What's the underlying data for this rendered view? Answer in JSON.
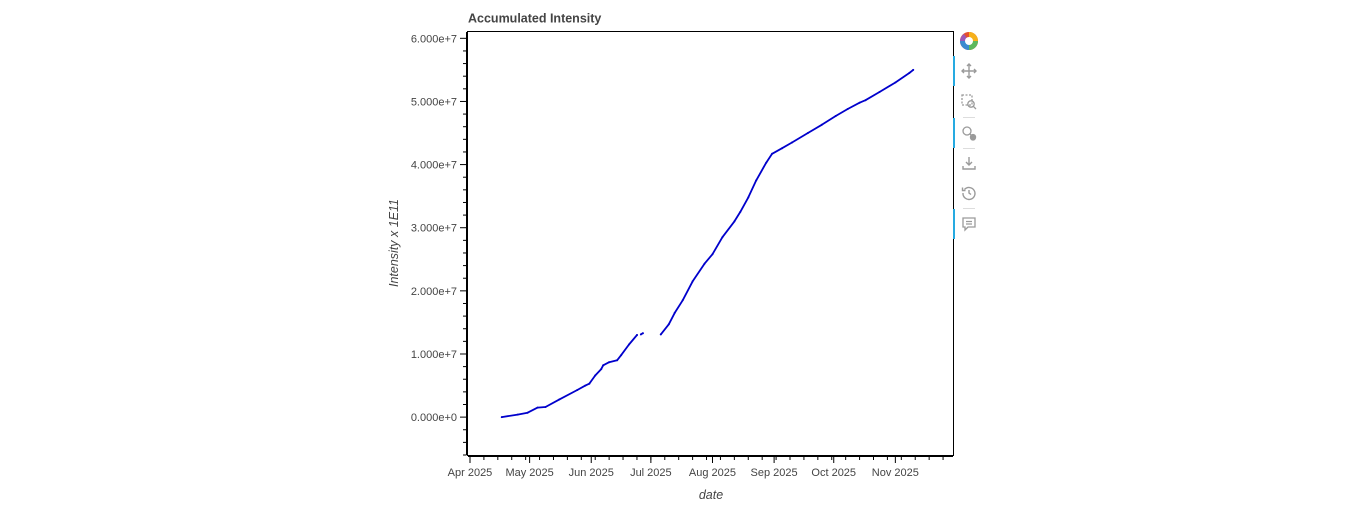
{
  "chart_data": {
    "type": "scatter",
    "title": "Accumulated Intensity",
    "xlabel": "date",
    "ylabel": "Intensity x 1E11",
    "x_start": "2025-04-01",
    "x_end": "2025-11-30",
    "xlim": [
      "2025-03-31",
      "2025-11-30"
    ],
    "ylim": [
      -6000000,
      61000000
    ],
    "x_ticks": [
      {
        "date": "2025-04-01",
        "label": "Apr 2025"
      },
      {
        "date": "2025-05-01",
        "label": "May 2025"
      },
      {
        "date": "2025-06-01",
        "label": "Jun 2025"
      },
      {
        "date": "2025-07-01",
        "label": "Jul 2025"
      },
      {
        "date": "2025-08-01",
        "label": "Aug 2025"
      },
      {
        "date": "2025-09-01",
        "label": "Sep 2025"
      },
      {
        "date": "2025-10-01",
        "label": "Oct 2025"
      },
      {
        "date": "2025-11-01",
        "label": "Nov 2025"
      }
    ],
    "y_ticks": [
      {
        "value": 0,
        "label": "0.000e+0"
      },
      {
        "value": 10000000,
        "label": "1.000e+7"
      },
      {
        "value": 20000000,
        "label": "2.000e+7"
      },
      {
        "value": 30000000,
        "label": "3.000e+7"
      },
      {
        "value": 40000000,
        "label": "4.000e+7"
      },
      {
        "value": 50000000,
        "label": "5.000e+7"
      },
      {
        "value": 60000000,
        "label": "6.000e+7"
      }
    ],
    "series": [
      {
        "color": "#0000cc",
        "segments": [
          [
            {
              "x": "2025-04-17",
              "y": 0
            },
            {
              "x": "2025-04-25",
              "y": 400000
            },
            {
              "x": "2025-04-30",
              "y": 700000
            },
            {
              "x": "2025-05-05",
              "y": 1500000
            },
            {
              "x": "2025-05-09",
              "y": 1600000
            },
            {
              "x": "2025-05-16",
              "y": 2800000
            },
            {
              "x": "2025-05-25",
              "y": 4300000
            },
            {
              "x": "2025-05-29",
              "y": 5000000
            },
            {
              "x": "2025-05-31",
              "y": 5300000
            },
            {
              "x": "2025-06-03",
              "y": 6600000
            },
            {
              "x": "2025-06-06",
              "y": 7600000
            },
            {
              "x": "2025-06-07",
              "y": 8200000
            },
            {
              "x": "2025-06-10",
              "y": 8700000
            },
            {
              "x": "2025-06-14",
              "y": 9000000
            },
            {
              "x": "2025-06-16",
              "y": 9800000
            },
            {
              "x": "2025-06-20",
              "y": 11500000
            },
            {
              "x": "2025-06-24",
              "y": 13000000
            }
          ],
          [
            {
              "x": "2025-06-26",
              "y": 13100000
            },
            {
              "x": "2025-06-27",
              "y": 13300000
            }
          ],
          [
            {
              "x": "2025-07-06",
              "y": 13100000
            },
            {
              "x": "2025-07-10",
              "y": 14700000
            },
            {
              "x": "2025-07-13",
              "y": 16500000
            },
            {
              "x": "2025-07-17",
              "y": 18500000
            },
            {
              "x": "2025-07-22",
              "y": 21500000
            },
            {
              "x": "2025-07-28",
              "y": 24300000
            },
            {
              "x": "2025-08-01",
              "y": 25800000
            },
            {
              "x": "2025-08-06",
              "y": 28500000
            },
            {
              "x": "2025-08-12",
              "y": 31000000
            },
            {
              "x": "2025-08-15",
              "y": 32500000
            },
            {
              "x": "2025-08-19",
              "y": 34800000
            },
            {
              "x": "2025-08-23",
              "y": 37500000
            },
            {
              "x": "2025-08-28",
              "y": 40300000
            },
            {
              "x": "2025-08-31",
              "y": 41700000
            },
            {
              "x": "2025-09-05",
              "y": 42600000
            },
            {
              "x": "2025-09-10",
              "y": 43500000
            },
            {
              "x": "2025-09-18",
              "y": 45000000
            },
            {
              "x": "2025-09-25",
              "y": 46300000
            },
            {
              "x": "2025-10-02",
              "y": 47700000
            },
            {
              "x": "2025-10-08",
              "y": 48800000
            },
            {
              "x": "2025-10-14",
              "y": 49800000
            },
            {
              "x": "2025-10-17",
              "y": 50200000
            },
            {
              "x": "2025-10-24",
              "y": 51500000
            },
            {
              "x": "2025-11-01",
              "y": 53000000
            },
            {
              "x": "2025-11-08",
              "y": 54500000
            },
            {
              "x": "2025-11-10",
              "y": 55000000
            }
          ]
        ]
      }
    ]
  },
  "toolbar": {
    "tools": [
      {
        "name": "bokeh-logo",
        "icon": "bokeh-logo-icon",
        "active": false
      },
      {
        "name": "pan",
        "icon": "pan-icon",
        "active": true
      },
      {
        "name": "box-zoom",
        "icon": "box-zoom-icon",
        "active": false
      },
      {
        "name": "wheel-zoom",
        "icon": "wheel-zoom-icon",
        "active": true
      },
      {
        "name": "save",
        "icon": "save-icon",
        "active": false
      },
      {
        "name": "reset",
        "icon": "reset-icon",
        "active": false
      },
      {
        "name": "hover",
        "icon": "hover-icon",
        "active": true
      }
    ]
  }
}
